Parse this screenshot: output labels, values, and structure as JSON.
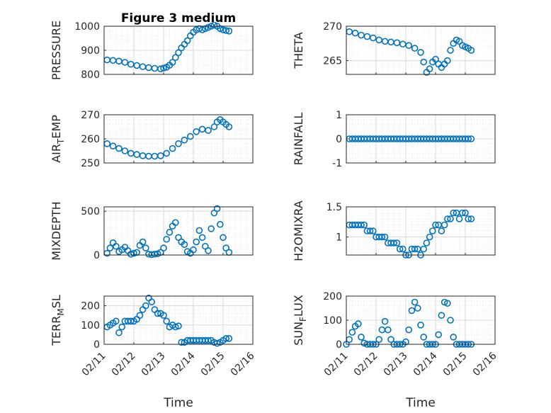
{
  "title": "Figure 3 medium",
  "xlabel": "Time",
  "colors": {
    "marker": "#0072BD",
    "axis": "#262626"
  },
  "x_ticks": [
    "02/11",
    "02/12",
    "02/13",
    "02/14",
    "02/15",
    "02/16"
  ],
  "x_range_days": [
    11,
    16
  ],
  "chart_data": [
    {
      "type": "scatter",
      "id": "pressure",
      "ylabel": "PRESSURE",
      "ylim": [
        800,
        1000
      ],
      "yticks": [
        "800",
        "900",
        "1000"
      ],
      "ytick_values": [
        800,
        900,
        1000
      ],
      "x": [
        11.1,
        11.3,
        11.5,
        11.7,
        11.9,
        12.1,
        12.3,
        12.5,
        12.7,
        12.9,
        13.0,
        13.1,
        13.2,
        13.3,
        13.4,
        13.5,
        13.6,
        13.7,
        13.8,
        13.9,
        14.0,
        14.1,
        14.2,
        14.3,
        14.4,
        14.5,
        14.6,
        14.7,
        14.8,
        14.9,
        15.0,
        15.1,
        15.2
      ],
      "y": [
        860,
        858,
        855,
        850,
        842,
        837,
        832,
        828,
        825,
        823,
        826,
        830,
        838,
        850,
        870,
        890,
        910,
        925,
        940,
        960,
        975,
        985,
        990,
        985,
        990,
        995,
        1000,
        1005,
        1000,
        990,
        985,
        982,
        980
      ]
    },
    {
      "type": "scatter",
      "id": "theta",
      "ylabel": "THETA",
      "ylim": [
        263,
        270
      ],
      "yticks": [
        "265",
        "270"
      ],
      "ytick_values": [
        265,
        270
      ],
      "x": [
        11.1,
        11.3,
        11.5,
        11.7,
        11.9,
        12.1,
        12.3,
        12.5,
        12.7,
        12.9,
        13.1,
        13.3,
        13.5,
        13.6,
        13.7,
        13.8,
        13.9,
        14.0,
        14.1,
        14.2,
        14.3,
        14.4,
        14.5,
        14.6,
        14.7,
        14.8,
        14.9,
        15.0,
        15.1,
        15.2
      ],
      "y": [
        269.2,
        269.0,
        268.7,
        268.5,
        268.3,
        268.0,
        267.8,
        267.7,
        267.6,
        267.4,
        267.2,
        266.8,
        266.2,
        264.8,
        263.3,
        263.8,
        264.8,
        265.2,
        264.5,
        264.0,
        264.5,
        265.0,
        266.5,
        267.5,
        268.0,
        267.8,
        267.2,
        267.0,
        266.8,
        266.5
      ]
    },
    {
      "type": "scatter",
      "id": "air_temp",
      "ylabel": "AIR_TEMP",
      "ylabel_main": "AIR",
      "ylabel_sub": "T",
      "ylabel_rest": "EMP",
      "ylim": [
        250,
        270
      ],
      "yticks": [
        "250",
        "260",
        "270"
      ],
      "ytick_values": [
        250,
        260,
        270
      ],
      "x": [
        11.1,
        11.3,
        11.5,
        11.7,
        11.9,
        12.1,
        12.3,
        12.5,
        12.7,
        12.9,
        13.1,
        13.3,
        13.5,
        13.7,
        13.9,
        14.1,
        14.3,
        14.5,
        14.7,
        14.8,
        14.9,
        15.0,
        15.1,
        15.2
      ],
      "y": [
        258,
        257,
        256,
        255,
        254,
        253.5,
        253,
        252.8,
        252.8,
        253,
        254,
        256,
        258,
        259.5,
        261,
        263,
        264,
        263.5,
        265,
        267,
        268,
        267,
        266,
        265
      ]
    },
    {
      "type": "scatter",
      "id": "rainfall",
      "ylabel": "RAINFALL",
      "ylim": [
        -1,
        1
      ],
      "yticks": [
        "-1",
        "0",
        "1"
      ],
      "ytick_values": [
        -1,
        0,
        1
      ],
      "x": [
        11.1,
        11.2,
        11.3,
        11.4,
        11.5,
        11.6,
        11.7,
        11.8,
        11.9,
        12.0,
        12.1,
        12.2,
        12.3,
        12.4,
        12.5,
        12.6,
        12.7,
        12.8,
        12.9,
        13.0,
        13.1,
        13.2,
        13.3,
        13.4,
        13.5,
        13.6,
        13.7,
        13.8,
        13.9,
        14.0,
        14.1,
        14.2,
        14.3,
        14.4,
        14.5,
        14.6,
        14.7,
        14.8,
        14.9,
        15.0,
        15.1,
        15.2
      ],
      "y": [
        0,
        0,
        0,
        0,
        0,
        0,
        0,
        0,
        0,
        0,
        0,
        0,
        0,
        0,
        0,
        0,
        0,
        0,
        0,
        0,
        0,
        0,
        0,
        0,
        0,
        0,
        0,
        0,
        0,
        0,
        0,
        0,
        0,
        0,
        0,
        0,
        0,
        0,
        0,
        0,
        0,
        0
      ]
    },
    {
      "type": "scatter",
      "id": "mixdepth",
      "ylabel": "MIXDEPTH",
      "ylim": [
        0,
        550
      ],
      "yticks": [
        "0",
        "500"
      ],
      "ytick_values": [
        0,
        500
      ],
      "x": [
        11.1,
        11.2,
        11.3,
        11.4,
        11.5,
        11.6,
        11.7,
        11.8,
        11.9,
        12.0,
        12.1,
        12.2,
        12.3,
        12.4,
        12.5,
        12.6,
        12.7,
        12.8,
        12.9,
        13.0,
        13.1,
        13.2,
        13.3,
        13.4,
        13.5,
        13.6,
        13.7,
        13.8,
        13.9,
        14.0,
        14.1,
        14.2,
        14.3,
        14.4,
        14.5,
        14.6,
        14.7,
        14.8,
        14.9,
        15.0,
        15.1,
        15.2
      ],
      "y": [
        20,
        80,
        140,
        100,
        40,
        60,
        90,
        50,
        10,
        20,
        30,
        110,
        150,
        80,
        10,
        5,
        10,
        15,
        30,
        80,
        180,
        260,
        330,
        370,
        200,
        150,
        120,
        40,
        20,
        60,
        150,
        280,
        200,
        100,
        50,
        300,
        480,
        530,
        350,
        200,
        80,
        30
      ]
    },
    {
      "type": "scatter",
      "id": "h2omixra",
      "ylabel": "H2OMIXRA",
      "ylim": [
        0.7,
        1.5
      ],
      "yticks": [
        "1",
        "1.5"
      ],
      "ytick_values": [
        1,
        1.5
      ],
      "x": [
        11.1,
        11.2,
        11.3,
        11.4,
        11.5,
        11.6,
        11.7,
        11.8,
        11.9,
        12.0,
        12.1,
        12.2,
        12.3,
        12.4,
        12.5,
        12.6,
        12.7,
        12.8,
        12.9,
        13.0,
        13.1,
        13.2,
        13.3,
        13.4,
        13.5,
        13.6,
        13.7,
        13.8,
        13.9,
        14.0,
        14.1,
        14.2,
        14.3,
        14.4,
        14.5,
        14.6,
        14.7,
        14.8,
        14.9,
        15.0,
        15.1,
        15.2
      ],
      "y": [
        1.2,
        1.2,
        1.2,
        1.2,
        1.2,
        1.2,
        1.1,
        1.1,
        1.1,
        1.0,
        1.0,
        1.0,
        1.0,
        0.9,
        0.9,
        0.9,
        0.9,
        0.8,
        0.8,
        0.7,
        0.7,
        0.8,
        0.8,
        0.8,
        0.7,
        0.8,
        0.9,
        1.0,
        1.1,
        1.2,
        1.2,
        1.1,
        1.2,
        1.3,
        1.3,
        1.4,
        1.4,
        1.3,
        1.4,
        1.4,
        1.3,
        1.3
      ]
    },
    {
      "type": "scatter",
      "id": "terr_msl",
      "ylabel": "TERR_MSL",
      "ylabel_main": "TERR",
      "ylabel_sub": "M",
      "ylabel_rest": "SL",
      "ylim": [
        0,
        250
      ],
      "yticks": [
        "0",
        "100",
        "200"
      ],
      "ytick_values": [
        0,
        100,
        200
      ],
      "x": [
        11.1,
        11.2,
        11.3,
        11.4,
        11.5,
        11.6,
        11.7,
        11.8,
        11.9,
        12.0,
        12.1,
        12.2,
        12.3,
        12.4,
        12.5,
        12.6,
        12.7,
        12.8,
        12.9,
        13.0,
        13.1,
        13.2,
        13.3,
        13.4,
        13.5,
        13.6,
        13.7,
        13.8,
        13.9,
        14.0,
        14.1,
        14.2,
        14.3,
        14.4,
        14.5,
        14.6,
        14.7,
        14.8,
        14.9,
        15.0,
        15.1,
        15.2
      ],
      "y": [
        90,
        100,
        110,
        120,
        60,
        90,
        120,
        120,
        120,
        120,
        130,
        150,
        180,
        200,
        240,
        220,
        180,
        160,
        160,
        150,
        120,
        90,
        100,
        90,
        95,
        10,
        10,
        20,
        20,
        20,
        20,
        20,
        20,
        20,
        20,
        20,
        10,
        5,
        10,
        20,
        30,
        30
      ]
    },
    {
      "type": "scatter",
      "id": "sun_flux",
      "ylabel": "SUN_FLUX",
      "ylabel_main": "SUN",
      "ylabel_sub": "F",
      "ylabel_rest": "LUX",
      "ylim": [
        0,
        200
      ],
      "yticks": [
        "0",
        "100",
        "200"
      ],
      "ytick_values": [
        0,
        100,
        200
      ],
      "x": [
        11.0,
        11.1,
        11.2,
        11.3,
        11.4,
        11.5,
        11.6,
        11.7,
        11.8,
        11.9,
        12.0,
        12.1,
        12.2,
        12.3,
        12.4,
        12.5,
        12.6,
        12.7,
        12.8,
        12.9,
        13.0,
        13.1,
        13.2,
        13.3,
        13.4,
        13.5,
        13.6,
        13.7,
        13.8,
        13.9,
        14.0,
        14.1,
        14.2,
        14.3,
        14.4,
        14.5,
        14.6,
        14.7,
        14.8,
        14.9,
        15.0,
        15.1,
        15.2
      ],
      "y": [
        0,
        20,
        50,
        75,
        85,
        30,
        5,
        0,
        0,
        0,
        0,
        20,
        60,
        95,
        60,
        20,
        0,
        0,
        0,
        0,
        10,
        60,
        140,
        175,
        150,
        80,
        30,
        0,
        0,
        0,
        0,
        40,
        120,
        175,
        170,
        100,
        30,
        0,
        0,
        0,
        0,
        0,
        0
      ]
    }
  ]
}
